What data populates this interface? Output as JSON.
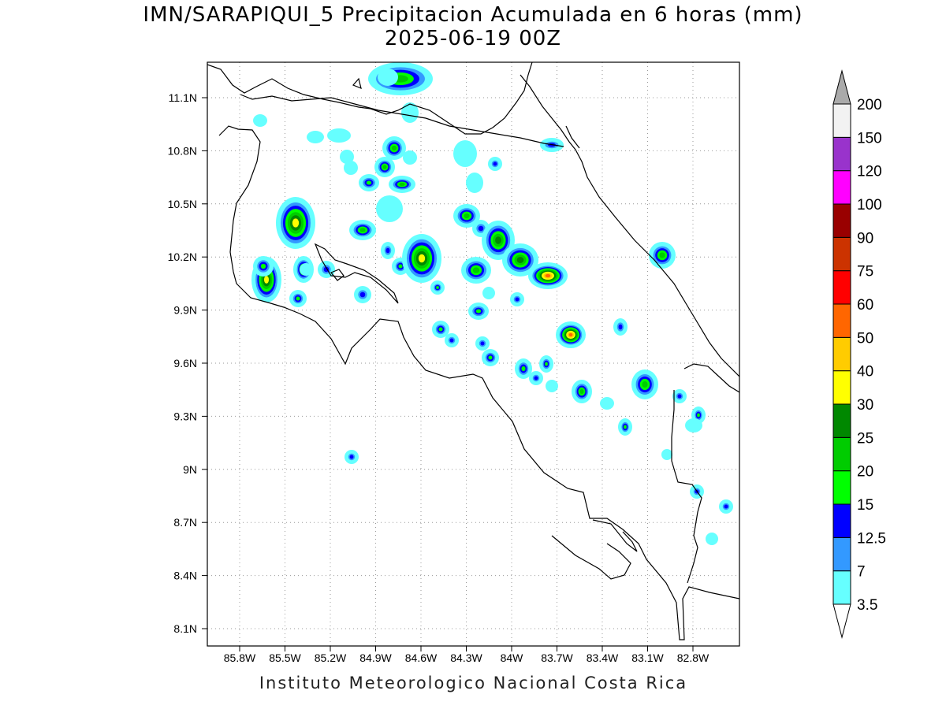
{
  "title": {
    "line1": "IMN/SARAPIQUI_5 Precipitacion Acumulada en 6 horas (mm)",
    "line2": "2025-06-19 00Z"
  },
  "footer": "Instituto Meteorologico Nacional Costa Rica",
  "axes": {
    "lat_ticks": [
      "11.1N",
      "10.8N",
      "10.5N",
      "10.2N",
      "9.9N",
      "9.6N",
      "9.3N",
      "9N",
      "8.7N",
      "8.4N",
      "8.1N"
    ],
    "lon_ticks": [
      "85.8W",
      "85.5W",
      "85.2W",
      "84.9W",
      "84.6W",
      "84.3W",
      "84W",
      "83.7W",
      "83.4W",
      "83.1W",
      "82.8W"
    ]
  },
  "colorbar": {
    "levels": [
      "3.5",
      "7",
      "12.5",
      "15",
      "20",
      "25",
      "30",
      "40",
      "50",
      "60",
      "75",
      "90",
      "100",
      "120",
      "150",
      "200"
    ],
    "colors": [
      "#66ffff",
      "#3399ff",
      "#0000ff",
      "#00ff00",
      "#00cc00",
      "#008800",
      "#ffff00",
      "#ffcc00",
      "#ff6600",
      "#ff0000",
      "#cc3300",
      "#990000",
      "#ff00ff",
      "#9933cc",
      "#f2f2f2",
      "#aaaaaa"
    ]
  }
}
